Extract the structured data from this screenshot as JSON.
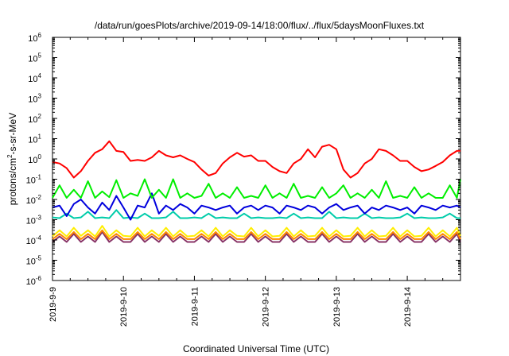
{
  "chart_data": {
    "type": "line",
    "title": "/data/run/goesPlots/archive/2019-09-14/18:00/flux/../flux/5daysMoonFluxes.txt",
    "xlabel": "Coordinated Universal Time (UTC)",
    "ylabel": {
      "pre": "protons/cm",
      "sup": "2",
      "post": "-s-sr-MeV"
    },
    "x_unit": "days since 2019-9-9 00:00 UTC",
    "xlim": [
      0,
      5.75
    ],
    "ylim": [
      1e-06,
      1000000.0
    ],
    "yscale": "log",
    "x_ticks": [
      {
        "x": 0,
        "label": "2019-9-9"
      },
      {
        "x": 1,
        "label": "2019-9-10"
      },
      {
        "x": 2,
        "label": "2019-9-11"
      },
      {
        "x": 3,
        "label": "2019-9-12"
      },
      {
        "x": 4,
        "label": "2019-9-13"
      },
      {
        "x": 5,
        "label": "2019-9-14"
      }
    ],
    "y_ticks": [
      {
        "base": "10",
        "exp": "6"
      },
      {
        "base": "10",
        "exp": "5"
      },
      {
        "base": "10",
        "exp": "4"
      },
      {
        "base": "10",
        "exp": "3"
      },
      {
        "base": "10",
        "exp": "2"
      },
      {
        "base": "10",
        "exp": "1"
      },
      {
        "base": "10",
        "exp": "0"
      },
      {
        "base": "10",
        "exp": "-1"
      },
      {
        "base": "10",
        "exp": "-2"
      },
      {
        "base": "10",
        "exp": "-3"
      },
      {
        "base": "10",
        "exp": "-4"
      },
      {
        "base": "10",
        "exp": "-5"
      },
      {
        "base": "10",
        "exp": "-6"
      }
    ],
    "grid": false,
    "legend": "none",
    "series": [
      {
        "color": "#ff0000",
        "x": [
          0,
          0.1,
          0.2,
          0.3,
          0.4,
          0.5,
          0.6,
          0.7,
          0.8,
          0.9,
          1,
          1.1,
          1.2,
          1.3,
          1.4,
          1.5,
          1.6,
          1.7,
          1.8,
          1.9,
          2,
          2.1,
          2.2,
          2.3,
          2.4,
          2.5,
          2.6,
          2.7,
          2.8,
          2.9,
          3,
          3.1,
          3.2,
          3.3,
          3.4,
          3.5,
          3.6,
          3.7,
          3.8,
          3.9,
          4,
          4.1,
          4.2,
          4.3,
          4.4,
          4.5,
          4.6,
          4.7,
          4.8,
          4.9,
          5,
          5.1,
          5.2,
          5.3,
          5.4,
          5.5,
          5.6,
          5.7,
          5.75
        ],
        "values": [
          0.7,
          0.6,
          0.35,
          0.12,
          0.25,
          0.8,
          2.0,
          3.0,
          7.5,
          2.5,
          2.2,
          0.8,
          0.9,
          0.8,
          1.2,
          2.5,
          1.5,
          1.2,
          1.5,
          1.0,
          0.7,
          0.3,
          0.15,
          0.2,
          0.6,
          1.2,
          2.0,
          1.3,
          1.5,
          0.8,
          0.8,
          0.4,
          0.25,
          0.2,
          0.6,
          1.0,
          3.0,
          1.2,
          4.0,
          5.0,
          3.0,
          0.3,
          0.12,
          0.2,
          0.6,
          1.0,
          3.0,
          2.5,
          1.5,
          0.8,
          0.8,
          0.4,
          0.25,
          0.3,
          0.45,
          0.7,
          1.5,
          2.5,
          2.5
        ]
      },
      {
        "color": "#00ee00",
        "x": [
          0,
          0.1,
          0.2,
          0.3,
          0.4,
          0.5,
          0.6,
          0.7,
          0.8,
          0.9,
          1,
          1.1,
          1.2,
          1.3,
          1.4,
          1.5,
          1.6,
          1.7,
          1.8,
          1.9,
          2,
          2.1,
          2.2,
          2.3,
          2.4,
          2.5,
          2.6,
          2.7,
          2.8,
          2.9,
          3,
          3.1,
          3.2,
          3.3,
          3.4,
          3.5,
          3.6,
          3.7,
          3.8,
          3.9,
          4,
          4.1,
          4.2,
          4.3,
          4.4,
          4.5,
          4.6,
          4.7,
          4.8,
          4.9,
          5,
          5.1,
          5.2,
          5.3,
          5.4,
          5.5,
          5.6,
          5.7,
          5.75
        ],
        "values": [
          0.012,
          0.05,
          0.012,
          0.03,
          0.012,
          0.08,
          0.012,
          0.025,
          0.013,
          0.09,
          0.012,
          0.02,
          0.015,
          0.1,
          0.012,
          0.03,
          0.012,
          0.1,
          0.012,
          0.02,
          0.012,
          0.015,
          0.06,
          0.012,
          0.02,
          0.012,
          0.04,
          0.012,
          0.015,
          0.012,
          0.05,
          0.012,
          0.02,
          0.012,
          0.06,
          0.012,
          0.015,
          0.012,
          0.04,
          0.012,
          0.02,
          0.05,
          0.012,
          0.02,
          0.012,
          0.03,
          0.012,
          0.08,
          0.012,
          0.015,
          0.012,
          0.04,
          0.012,
          0.02,
          0.012,
          0.012,
          0.05,
          0.012,
          0.1
        ]
      },
      {
        "color": "#0000dd",
        "x": [
          0,
          0.1,
          0.2,
          0.3,
          0.4,
          0.5,
          0.6,
          0.7,
          0.8,
          0.9,
          1,
          1.1,
          1.2,
          1.3,
          1.4,
          1.5,
          1.6,
          1.7,
          1.8,
          1.9,
          2,
          2.1,
          2.2,
          2.3,
          2.4,
          2.5,
          2.6,
          2.7,
          2.8,
          2.9,
          3,
          3.1,
          3.2,
          3.3,
          3.4,
          3.5,
          3.6,
          3.7,
          3.8,
          3.9,
          4,
          4.1,
          4.2,
          4.3,
          4.4,
          4.5,
          4.6,
          4.7,
          4.8,
          4.9,
          5,
          5.1,
          5.2,
          5.3,
          5.4,
          5.5,
          5.6,
          5.7,
          5.75
        ],
        "values": [
          0.004,
          0.005,
          0.0015,
          0.006,
          0.01,
          0.004,
          0.002,
          0.007,
          0.003,
          0.015,
          0.004,
          0.001,
          0.005,
          0.004,
          0.02,
          0.002,
          0.005,
          0.003,
          0.006,
          0.004,
          0.002,
          0.005,
          0.004,
          0.003,
          0.004,
          0.005,
          0.002,
          0.004,
          0.005,
          0.003,
          0.005,
          0.004,
          0.002,
          0.005,
          0.004,
          0.003,
          0.005,
          0.004,
          0.002,
          0.004,
          0.006,
          0.003,
          0.004,
          0.005,
          0.002,
          0.004,
          0.003,
          0.005,
          0.004,
          0.003,
          0.004,
          0.002,
          0.005,
          0.004,
          0.003,
          0.005,
          0.004,
          0.005,
          0.004
        ]
      },
      {
        "color": "#00ccaa",
        "x": [
          0,
          0.1,
          0.2,
          0.3,
          0.4,
          0.5,
          0.6,
          0.7,
          0.8,
          0.9,
          1,
          1.1,
          1.2,
          1.3,
          1.4,
          1.5,
          1.6,
          1.7,
          1.8,
          1.9,
          2,
          2.1,
          2.2,
          2.3,
          2.4,
          2.5,
          2.6,
          2.7,
          2.8,
          2.9,
          3,
          3.1,
          3.2,
          3.3,
          3.4,
          3.5,
          3.6,
          3.7,
          3.8,
          3.9,
          4,
          4.1,
          4.2,
          4.3,
          4.4,
          4.5,
          4.6,
          4.7,
          4.8,
          4.9,
          5,
          5.1,
          5.2,
          5.3,
          5.4,
          5.5,
          5.6,
          5.7,
          5.75
        ],
        "values": [
          0.0013,
          0.0012,
          0.002,
          0.0012,
          0.0013,
          0.0025,
          0.0012,
          0.0013,
          0.0012,
          0.003,
          0.0012,
          0.0013,
          0.0012,
          0.002,
          0.0012,
          0.0012,
          0.0013,
          0.0025,
          0.0012,
          0.0012,
          0.0013,
          0.0012,
          0.002,
          0.0012,
          0.0013,
          0.0012,
          0.0012,
          0.002,
          0.0012,
          0.0013,
          0.0012,
          0.0012,
          0.0013,
          0.0012,
          0.002,
          0.0012,
          0.0013,
          0.0012,
          0.0012,
          0.0025,
          0.0012,
          0.0013,
          0.0012,
          0.0012,
          0.002,
          0.0012,
          0.0013,
          0.0012,
          0.0012,
          0.0013,
          0.002,
          0.0012,
          0.0013,
          0.0012,
          0.0012,
          0.0013,
          0.002,
          0.0012,
          0.0012
        ]
      },
      {
        "color": "#ffee00",
        "x": [
          0,
          0.1,
          0.2,
          0.3,
          0.4,
          0.5,
          0.6,
          0.7,
          0.8,
          0.9,
          1,
          1.1,
          1.2,
          1.3,
          1.4,
          1.5,
          1.6,
          1.7,
          1.8,
          1.9,
          2,
          2.1,
          2.2,
          2.3,
          2.4,
          2.5,
          2.6,
          2.7,
          2.8,
          2.9,
          3,
          3.1,
          3.2,
          3.3,
          3.4,
          3.5,
          3.6,
          3.7,
          3.8,
          3.9,
          4,
          4.1,
          4.2,
          4.3,
          4.4,
          4.5,
          4.6,
          4.7,
          4.8,
          4.9,
          5,
          5.1,
          5.2,
          5.3,
          5.4,
          5.5,
          5.6,
          5.7,
          5.75
        ],
        "values": [
          0.00015,
          0.0003,
          0.00015,
          0.0004,
          0.00016,
          0.0003,
          0.00015,
          0.0005,
          0.00015,
          0.0003,
          0.00016,
          0.00015,
          0.0004,
          0.00015,
          0.0003,
          0.00016,
          0.0004,
          0.00015,
          0.0003,
          0.00015,
          0.00016,
          0.0003,
          0.00015,
          0.0004,
          0.00015,
          0.0003,
          0.00016,
          0.00015,
          0.0004,
          0.00015,
          0.0003,
          0.00015,
          0.00016,
          0.0004,
          0.00015,
          0.0003,
          0.00015,
          0.00016,
          0.0004,
          0.00015,
          0.0003,
          0.00015,
          0.00016,
          0.0004,
          0.00015,
          0.0003,
          0.00015,
          0.00016,
          0.0004,
          0.00015,
          0.0003,
          0.00015,
          0.00016,
          0.0004,
          0.00015,
          0.0003,
          0.00015,
          0.0004,
          0.00016
        ]
      },
      {
        "color": "#ff8800",
        "x": [
          0,
          0.1,
          0.2,
          0.3,
          0.4,
          0.5,
          0.6,
          0.7,
          0.8,
          0.9,
          1,
          1.1,
          1.2,
          1.3,
          1.4,
          1.5,
          1.6,
          1.7,
          1.8,
          1.9,
          2,
          2.1,
          2.2,
          2.3,
          2.4,
          2.5,
          2.6,
          2.7,
          2.8,
          2.9,
          3,
          3.1,
          3.2,
          3.3,
          3.4,
          3.5,
          3.6,
          3.7,
          3.8,
          3.9,
          4,
          4.1,
          4.2,
          4.3,
          4.4,
          4.5,
          4.6,
          4.7,
          4.8,
          4.9,
          5,
          5.1,
          5.2,
          5.3,
          5.4,
          5.5,
          5.6,
          5.7,
          5.75
        ],
        "values": [
          0.00011,
          0.0002,
          0.00011,
          0.00025,
          0.00011,
          0.0002,
          0.00011,
          0.0003,
          0.00011,
          0.0002,
          0.00011,
          0.00011,
          0.00025,
          0.00011,
          0.0002,
          0.00011,
          0.00025,
          0.00011,
          0.0002,
          0.00011,
          0.00011,
          0.0002,
          0.00011,
          0.00025,
          0.00011,
          0.0002,
          0.00011,
          0.00011,
          0.00025,
          0.00011,
          0.0002,
          0.00011,
          0.00011,
          0.00025,
          0.00011,
          0.0002,
          0.00011,
          0.00011,
          0.00025,
          0.00011,
          0.0002,
          0.00011,
          0.00011,
          0.00025,
          0.00011,
          0.0002,
          0.00011,
          0.00011,
          0.00025,
          0.00011,
          0.0002,
          0.00011,
          0.00011,
          0.00025,
          0.00011,
          0.0002,
          0.00011,
          0.00025,
          0.00011
        ]
      },
      {
        "color": "#883366",
        "x": [
          0,
          0.1,
          0.2,
          0.3,
          0.4,
          0.5,
          0.6,
          0.7,
          0.8,
          0.9,
          1,
          1.1,
          1.2,
          1.3,
          1.4,
          1.5,
          1.6,
          1.7,
          1.8,
          1.9,
          2,
          2.1,
          2.2,
          2.3,
          2.4,
          2.5,
          2.6,
          2.7,
          2.8,
          2.9,
          3,
          3.1,
          3.2,
          3.3,
          3.4,
          3.5,
          3.6,
          3.7,
          3.8,
          3.9,
          4,
          4.1,
          4.2,
          4.3,
          4.4,
          4.5,
          4.6,
          4.7,
          4.8,
          4.9,
          5,
          5.1,
          5.2,
          5.3,
          5.4,
          5.5,
          5.6,
          5.7,
          5.75
        ],
        "values": [
          8e-05,
          0.00015,
          8e-05,
          0.0002,
          8e-05,
          0.00015,
          8e-05,
          0.00025,
          8e-05,
          0.00015,
          8e-05,
          8e-05,
          0.0002,
          8e-05,
          0.00015,
          8e-05,
          0.0002,
          8e-05,
          0.00015,
          8e-05,
          8e-05,
          0.00015,
          8e-05,
          0.0002,
          8e-05,
          0.00015,
          8e-05,
          8e-05,
          0.0002,
          8e-05,
          0.00015,
          8e-05,
          8e-05,
          0.0002,
          8e-05,
          0.00015,
          8e-05,
          8e-05,
          0.0002,
          8e-05,
          0.00015,
          8e-05,
          8e-05,
          0.0002,
          8e-05,
          0.00015,
          8e-05,
          8e-05,
          0.0002,
          8e-05,
          0.00015,
          8e-05,
          8e-05,
          0.0002,
          8e-05,
          0.00015,
          8e-05,
          0.0002,
          8e-05
        ]
      }
    ]
  }
}
